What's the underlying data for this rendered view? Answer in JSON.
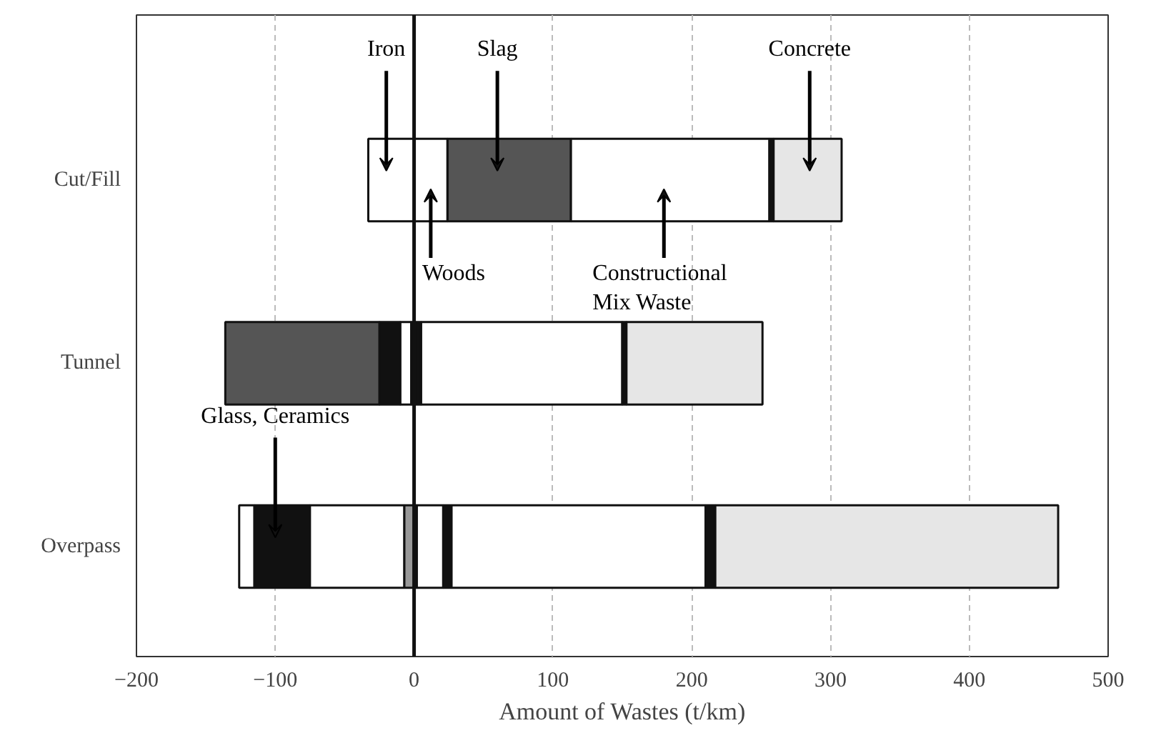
{
  "chart_data": {
    "type": "bar",
    "orientation": "horizontal",
    "xlabel": "Amount of Wastes (t/km)",
    "categories": [
      "Cut/Fill",
      "Tunnel",
      "Overpass"
    ],
    "series": [
      {
        "color": "#ffffff",
        "base": [
          -33,
          -10,
          -126
        ],
        "values": [
          33,
          8,
          11
        ]
      },
      {
        "color": "#111111",
        "base": [
          null,
          -25,
          -115
        ],
        "values": [
          null,
          15,
          40
        ]
      },
      {
        "color": "#555555",
        "base": [
          24,
          -136,
          null
        ],
        "values": [
          89,
          111,
          null
        ]
      },
      {
        "color": "#ffffff",
        "base": [
          0,
          5,
          -75
        ],
        "values": [
          24,
          145,
          68
        ]
      },
      {
        "color": "#999999",
        "base": [
          null,
          null,
          -7
        ],
        "values": [
          null,
          null,
          9
        ]
      },
      {
        "color": "#ffffff",
        "base": [
          null,
          null,
          2
        ],
        "values": [
          null,
          null,
          19
        ]
      },
      {
        "color": "#111111",
        "base": [
          null,
          -2,
          21
        ],
        "values": [
          null,
          7,
          6
        ]
      },
      {
        "color": "#ffffff",
        "base": [
          113,
          null,
          27
        ],
        "values": [
          143,
          null,
          183
        ]
      },
      {
        "color": "#111111",
        "base": [
          256,
          150,
          210
        ],
        "values": [
          3,
          3,
          7
        ]
      },
      {
        "color": "#e6e6e6",
        "base": [
          259,
          153,
          217
        ],
        "values": [
          49,
          98,
          247
        ]
      }
    ],
    "xlim": [
      -200,
      500
    ],
    "xticks": [
      -200,
      -100,
      0,
      100,
      200,
      300,
      400,
      500
    ],
    "ref_lines": [
      {
        "axis": "x",
        "value": 0,
        "color": "#111111"
      }
    ],
    "annotations": [
      "Iron",
      "Slag",
      "Concrete",
      "Woods",
      "Constructional\nMix Waste",
      "Glass, Ceramics"
    ],
    "grid": "x"
  }
}
